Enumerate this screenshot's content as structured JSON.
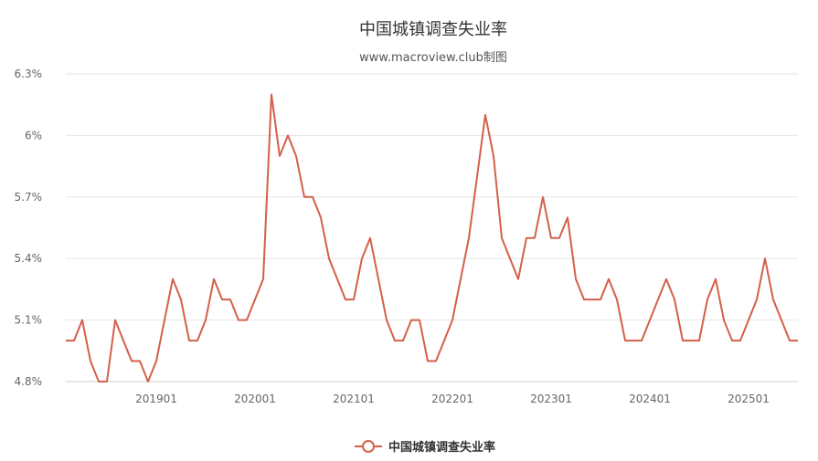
{
  "chart_data": {
    "type": "line",
    "title": "中国城镇调查失业率",
    "subtitle": "www.macroview.club制图",
    "xlabel": "",
    "ylabel": "",
    "ylim": [
      4.8,
      6.3
    ],
    "y_ticks": [
      "4.8%",
      "5.1%",
      "5.4%",
      "5.7%",
      "6%",
      "6.3%"
    ],
    "x_ticks": [
      "201901",
      "202001",
      "202101",
      "202201",
      "202301",
      "202401",
      "202501"
    ],
    "grid": true,
    "legend_position": "bottom",
    "color": "#D3604A",
    "series": [
      {
        "name": "中国城镇调查失业率",
        "values": [
          5.0,
          5.0,
          5.1,
          4.9,
          4.8,
          4.8,
          5.1,
          5.0,
          4.9,
          4.9,
          4.8,
          4.9,
          5.1,
          5.3,
          5.2,
          5.0,
          5.0,
          5.1,
          5.3,
          5.2,
          5.2,
          5.1,
          5.1,
          5.2,
          5.3,
          6.2,
          5.9,
          6.0,
          5.9,
          5.7,
          5.7,
          5.6,
          5.4,
          5.3,
          5.2,
          5.2,
          5.4,
          5.5,
          5.3,
          5.1,
          5.0,
          5.0,
          5.1,
          5.1,
          4.9,
          4.9,
          5.0,
          5.1,
          5.3,
          5.5,
          5.8,
          6.1,
          5.9,
          5.5,
          5.4,
          5.3,
          5.5,
          5.5,
          5.7,
          5.5,
          5.5,
          5.6,
          5.3,
          5.2,
          5.2,
          5.2,
          5.3,
          5.2,
          5.0,
          5.0,
          5.0,
          5.1,
          5.2,
          5.3,
          5.2,
          5.0,
          5.0,
          5.0,
          5.2,
          5.3,
          5.1,
          5.0,
          5.0,
          5.1,
          5.2,
          5.4,
          5.2,
          5.1,
          5.0,
          5.0
        ]
      }
    ]
  }
}
